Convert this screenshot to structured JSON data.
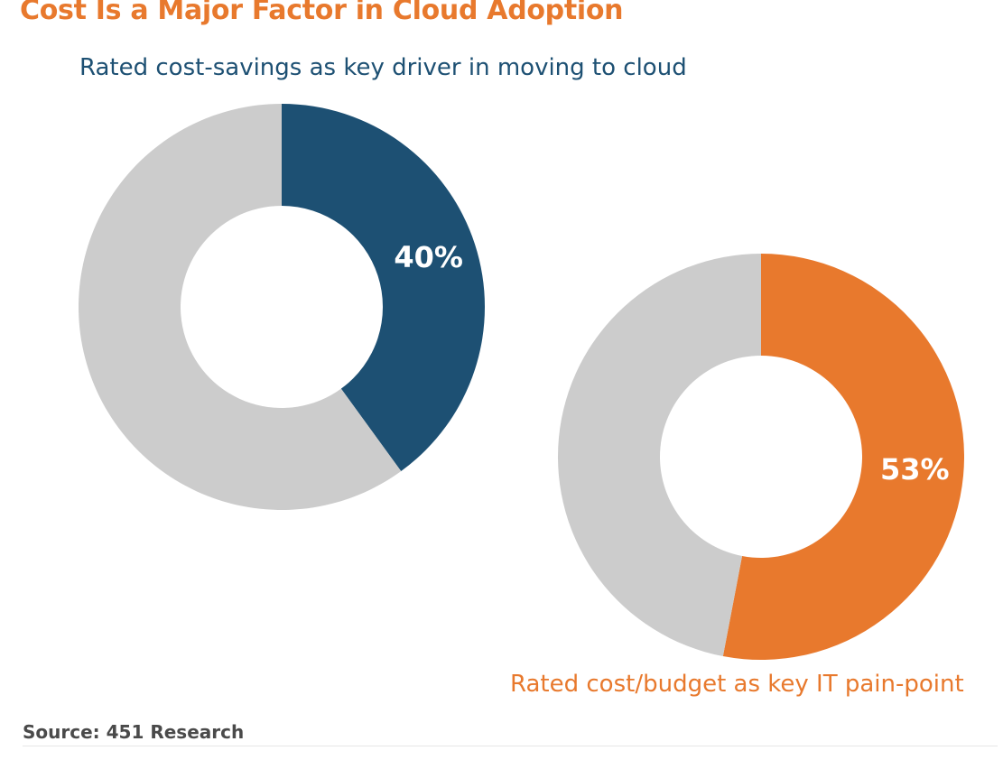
{
  "title": "Cost Is a Major Factor in Cloud Adoption",
  "source": "Source: 451 Research",
  "colors": {
    "title": "#e8792d",
    "series1": "#1d5073",
    "series2": "#e8792d",
    "remainder": "#cccccc"
  },
  "chart_data": [
    {
      "type": "pie",
      "title": "Rated cost-savings as key driver in moving to cloud",
      "slices": [
        {
          "label": "40%",
          "value": 40,
          "color": "#1d5073"
        },
        {
          "value": 60,
          "color": "#cccccc"
        }
      ]
    },
    {
      "type": "pie",
      "title": "Rated cost/budget as key IT pain-point",
      "slices": [
        {
          "label": "53%",
          "value": 53,
          "color": "#e8792d"
        },
        {
          "value": 47,
          "color": "#cccccc"
        }
      ]
    }
  ]
}
